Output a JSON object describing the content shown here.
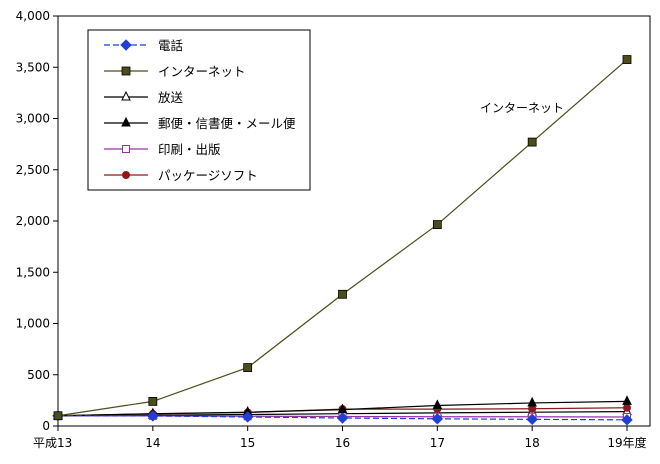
{
  "chart_data": {
    "type": "line",
    "categories": [
      "平成13",
      "14",
      "15",
      "16",
      "17",
      "18",
      "19年度"
    ],
    "ylim": [
      0,
      4000
    ],
    "yticks": [
      0,
      500,
      1000,
      1500,
      2000,
      2500,
      3000,
      3500,
      4000
    ],
    "ytick_labels": [
      "0",
      "500",
      "1,000",
      "1,500",
      "2,000",
      "2,500",
      "3,000",
      "3,500",
      "4,000"
    ],
    "grid": false,
    "legend_position": "top-left",
    "series": [
      {
        "name": "電話",
        "values": [
          100,
          98,
          88,
          78,
          70,
          65,
          60
        ],
        "color": "#1f3fd6",
        "marker": "diamond",
        "dashed": true
      },
      {
        "name": "インターネット",
        "values": [
          100,
          240,
          570,
          1285,
          1965,
          2770,
          3575
        ],
        "color": "#4d4d1a",
        "marker": "square",
        "dashed": false
      },
      {
        "name": "放送",
        "values": [
          100,
          105,
          112,
          120,
          128,
          135,
          140
        ],
        "color": "#000000",
        "marker": "triangle-open",
        "dashed": false
      },
      {
        "name": "郵便・信書便・メール便",
        "values": [
          100,
          120,
          135,
          160,
          200,
          225,
          240
        ],
        "color": "#000000",
        "marker": "triangle",
        "dashed": false
      },
      {
        "name": "印刷・出版",
        "values": [
          100,
          98,
          95,
          93,
          90,
          90,
          88
        ],
        "color": "#9933aa",
        "marker": "square-open",
        "dashed": false
      },
      {
        "name": "パッケージソフト",
        "values": [
          100,
          118,
          132,
          165,
          165,
          168,
          178
        ],
        "color": "#8b1a1a",
        "marker": "circle",
        "dashed": false
      }
    ],
    "annotations": [
      {
        "text": "インターネット",
        "series": "インターネット"
      }
    ]
  }
}
